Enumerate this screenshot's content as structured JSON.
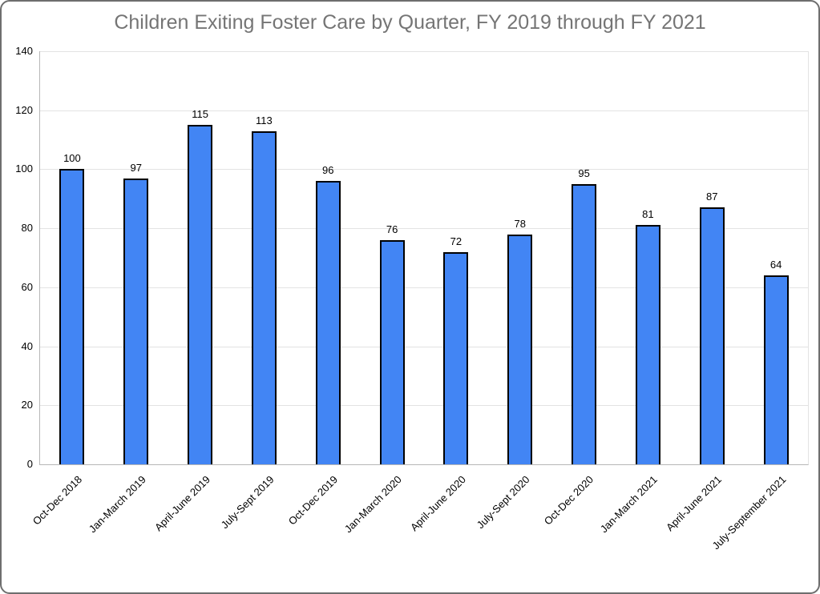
{
  "chart_data": {
    "type": "bar",
    "title": "Children Exiting Foster Care by Quarter, FY 2019 through FY 2021",
    "categories": [
      "Oct-Dec 2018",
      "Jan-March 2019",
      "April-June 2019",
      "July-Sept 2019",
      "Oct-Dec 2019",
      "Jan-March 2020",
      "April-June 2020",
      "July-Sept 2020",
      "Oct-Dec 2020",
      "Jan-March 2021",
      "April-June 2021",
      "July-September 2021"
    ],
    "values": [
      100,
      97,
      115,
      113,
      96,
      76,
      72,
      78,
      95,
      81,
      87,
      64
    ],
    "data_labels_shown": true,
    "xlabel": "",
    "ylabel": "",
    "ylim": [
      0,
      140
    ],
    "yticks": [
      0,
      20,
      40,
      60,
      80,
      100,
      120,
      140
    ],
    "grid": true,
    "legend_position": "none",
    "x_tick_rotation_degrees": 45,
    "colors": {
      "bar_fill": "#4285F4",
      "bar_border": "#000000",
      "gridline": "#e3e3e3",
      "axis_line": "#b7b7b7",
      "title": "#757575",
      "text": "#000000",
      "window_border": "#6e6e6e",
      "background": "#ffffff"
    }
  }
}
